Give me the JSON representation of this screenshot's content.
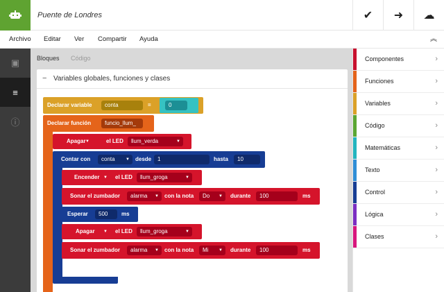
{
  "header": {
    "project_title": "Puente de Londres",
    "logo_icon": "robot-icon",
    "actions": [
      {
        "name": "check-icon",
        "glyph": "✔"
      },
      {
        "name": "arrow-right-icon",
        "glyph": "➜"
      },
      {
        "name": "cloud-icon",
        "glyph": "☁"
      }
    ]
  },
  "menu": {
    "items": [
      "Archivo",
      "Editar",
      "Ver",
      "Compartir",
      "Ayuda"
    ],
    "collapse_glyph": "︽"
  },
  "leftbar": {
    "items": [
      {
        "name": "chip-icon",
        "glyph": "▣"
      },
      {
        "name": "text-lines-icon",
        "glyph": "≡"
      },
      {
        "name": "info-icon",
        "glyph": "ⓘ"
      }
    ]
  },
  "main": {
    "tabs": [
      "Bloques",
      "Código"
    ],
    "panel_title": "Variables globales, funciones y clases",
    "panel_toggle": "−"
  },
  "blocks": {
    "declare_var": {
      "label": "Declarar variable",
      "name": "conta",
      "equals": "=",
      "value": "0"
    },
    "declare_fn": {
      "label": "Declarar función",
      "name": "funcio_llum_"
    },
    "apagar1": {
      "label": "Apagar",
      "led_label": "el LED",
      "led": "llum_verda"
    },
    "contar": {
      "label": "Contar con",
      "var": "conta",
      "desde": "desde",
      "from": "1",
      "hasta": "hasta",
      "to": "10"
    },
    "encender": {
      "label": "Encender",
      "led_label": "el LED",
      "led": "llum_groga"
    },
    "sonar1": {
      "label": "Sonar el zumbador",
      "buzzer": "alarma",
      "note_label": "con la nota",
      "note": "Do",
      "dur_label": "durante",
      "dur": "100",
      "unit": "ms"
    },
    "esperar": {
      "label": "Esperar",
      "value": "500",
      "unit": "ms"
    },
    "apagar2": {
      "label": "Apagar",
      "led_label": "el LED",
      "led": "llum_groga"
    },
    "sonar2": {
      "label": "Sonar el zumbador",
      "buzzer": "alarma",
      "note_label": "con la nota",
      "note": "Mi",
      "dur_label": "durante",
      "dur": "100",
      "unit": "ms"
    }
  },
  "categories": [
    {
      "label": "Componentes",
      "color": "#c8102e"
    },
    {
      "label": "Funciones",
      "color": "#e4631b"
    },
    {
      "label": "Variables",
      "color": "#dba128"
    },
    {
      "label": "Código",
      "color": "#5ba632"
    },
    {
      "label": "Matemáticas",
      "color": "#23b5bf"
    },
    {
      "label": "Texto",
      "color": "#2f8ed6"
    },
    {
      "label": "Control",
      "color": "#173d94"
    },
    {
      "label": "Lógica",
      "color": "#7b2ec2"
    },
    {
      "label": "Clases",
      "color": "#d8167d"
    }
  ],
  "colors": {
    "brand": "#5fa331",
    "variable_block": "#dba128",
    "function_block": "#e5641a",
    "component_block": "#d5142b",
    "control_block": "#173d94"
  }
}
